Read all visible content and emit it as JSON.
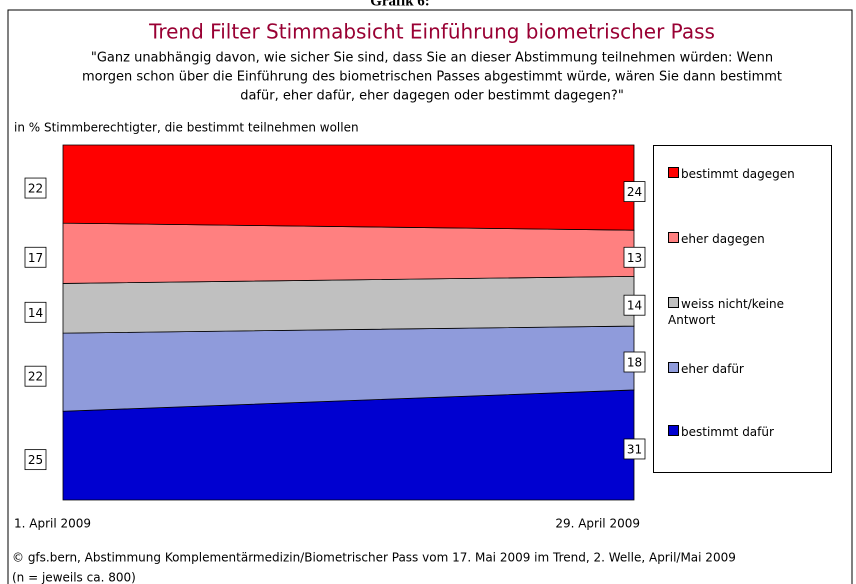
{
  "graphic_label": "Grafik 6:",
  "footer": [
    "© gfs.bern, Abstimmung Komplementärmedizin/Biometrischer Pass vom 17. Mai 2009 im Trend, 2. Welle, April/Mai 2009",
    "(n = jeweils ca. 800)"
  ],
  "chart_data": {
    "type": "stacked_area",
    "title": "Trend Filter Stimmabsicht Einführung biometrischer Pass",
    "subtitle": [
      "\"Ganz unabhängig davon, wie sicher Sie sind, dass Sie an dieser Abstimmung teilnehmen würden: Wenn",
      "morgen schon über die Einführung des biometrischen Passes abgestimmt würde, wären Sie dann bestimmt",
      "dafür, eher dafür, eher dagegen oder bestimmt dagegen?\""
    ],
    "y_label": "in % Stimmberechtigter, die bestimmt teilnehmen wollen",
    "categories": [
      "1. April 2009",
      "29. April 2009"
    ],
    "ylim": [
      0,
      100
    ],
    "legend": "right",
    "series": [
      {
        "name": "bestimmt dafür",
        "color": "#0000d0",
        "values": [
          25,
          31
        ]
      },
      {
        "name": "eher dafür",
        "color": "#8f9bdb",
        "values": [
          22,
          18
        ]
      },
      {
        "name": "weiss nicht/keine Antwort",
        "color": "#c0c0c0",
        "values": [
          14,
          14
        ]
      },
      {
        "name": "eher dagegen",
        "color": "#ff8080",
        "values": [
          17,
          13
        ]
      },
      {
        "name": "bestimmt dagegen",
        "color": "#ff0000",
        "values": [
          22,
          24
        ]
      }
    ]
  }
}
